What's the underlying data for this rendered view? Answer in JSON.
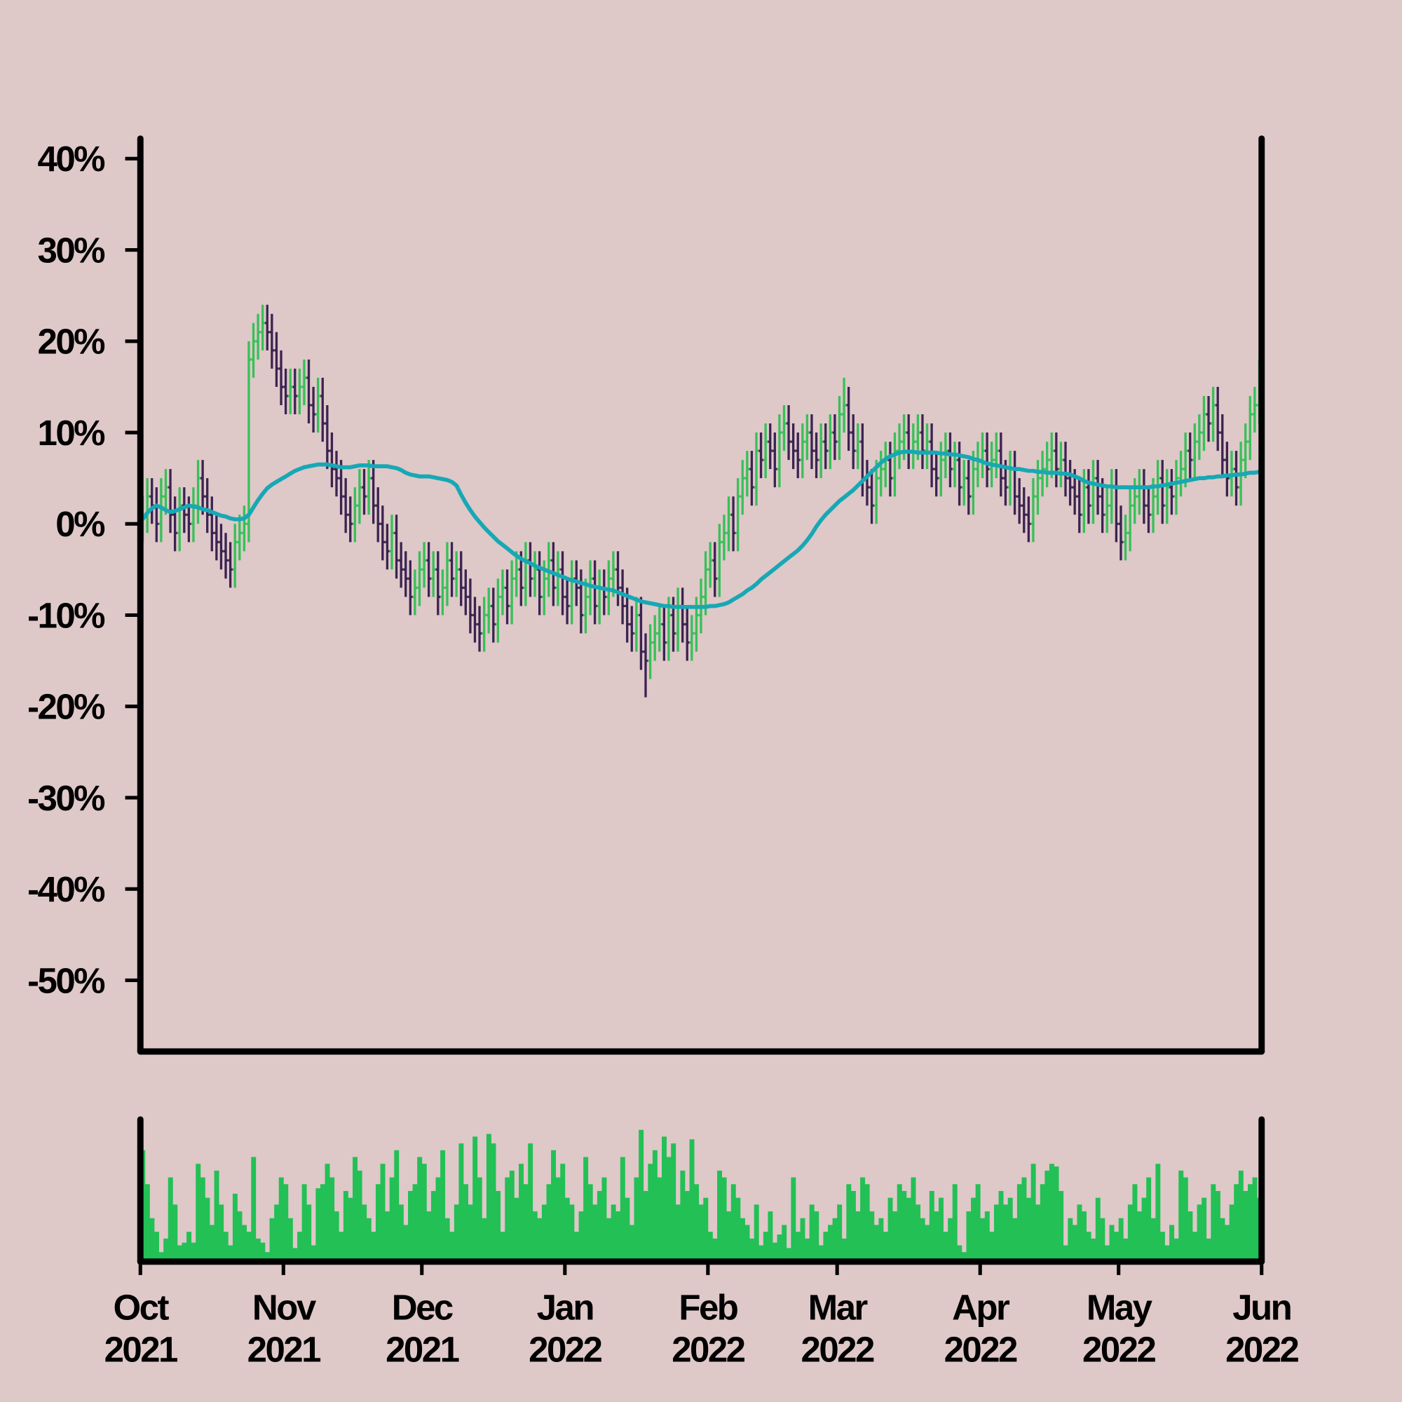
{
  "chart_data": {
    "type": "ohlc",
    "up_color": "#36c158",
    "down_color": "#3b2352",
    "xlim": [
      0,
      243
    ],
    "xticks": [
      {
        "value": 0,
        "label": "Oct 2021"
      },
      {
        "value": 31,
        "label": "Nov 2021"
      },
      {
        "value": 61,
        "label": "Dec 2021"
      },
      {
        "value": 92,
        "label": "Jan 2022"
      },
      {
        "value": 123,
        "label": "Feb 2022"
      },
      {
        "value": 151,
        "label": "Mar 2022"
      },
      {
        "value": 182,
        "label": "Apr 2022"
      },
      {
        "value": 212,
        "label": "May 2022"
      },
      {
        "value": 243,
        "label": "Jun 2022"
      }
    ],
    "ylim": [
      -57.8,
      42.2
    ],
    "yticks": [
      {
        "value": -50,
        "label": "-50%"
      },
      {
        "value": -40,
        "label": "-40%"
      },
      {
        "value": -30,
        "label": "-30%"
      },
      {
        "value": -20,
        "label": "-20%"
      },
      {
        "value": -10,
        "label": "-10%"
      },
      {
        "value": 0,
        "label": "0%"
      },
      {
        "value": 10,
        "label": "10%"
      },
      {
        "value": 20,
        "label": "20%"
      },
      {
        "value": 30,
        "label": "30%"
      },
      {
        "value": 40,
        "label": "40%"
      }
    ],
    "open": [
      0,
      1,
      3,
      2,
      0,
      3,
      4,
      1,
      -1,
      2,
      1,
      0,
      2,
      5,
      3,
      1,
      -1,
      -2,
      -3,
      -4,
      -5,
      -2,
      -1,
      0,
      18,
      20,
      21,
      22,
      21,
      19,
      17,
      15,
      14,
      15,
      14,
      15,
      16,
      13,
      12,
      14,
      11,
      8,
      6,
      5,
      3,
      1,
      0,
      2,
      4,
      3,
      5,
      2,
      0,
      -2,
      -3,
      -1,
      -4,
      -5,
      -6,
      -8,
      -7,
      -5,
      -4,
      -6,
      -5,
      -8,
      -7,
      -4,
      -6,
      -5,
      -7,
      -8,
      -10,
      -11,
      -12,
      -10,
      -9,
      -11,
      -8,
      -7,
      -9,
      -6,
      -5,
      -7,
      -4,
      -6,
      -5,
      -8,
      -6,
      -4,
      -7,
      -5,
      -8,
      -9,
      -6,
      -7,
      -10,
      -8,
      -6,
      -9,
      -7,
      -8,
      -6,
      -5,
      -7,
      -9,
      -11,
      -12,
      -10,
      -14,
      -15,
      -13,
      -12,
      -11,
      -13,
      -10,
      -12,
      -9,
      -11,
      -13,
      -12,
      -10,
      -8,
      -5,
      -4,
      -6,
      -2,
      -1,
      1,
      -1,
      3,
      5,
      6,
      4,
      8,
      7,
      9,
      8,
      6,
      10,
      11,
      9,
      8,
      7,
      9,
      10,
      8,
      7,
      9,
      8,
      10,
      9,
      12,
      13,
      10,
      8,
      9,
      5,
      4,
      2,
      5,
      6,
      7,
      5,
      8,
      9,
      10,
      8,
      9,
      10,
      8,
      9,
      6,
      5,
      7,
      8,
      6,
      7,
      4,
      5,
      3,
      6,
      7,
      8,
      6,
      7,
      8,
      5,
      4,
      6,
      3,
      2,
      1,
      0,
      3,
      5,
      6,
      7,
      8,
      6,
      7,
      5,
      4,
      3,
      1,
      4,
      2,
      5,
      3,
      1,
      2,
      4,
      0,
      -2,
      -1,
      2,
      3,
      4,
      2,
      1,
      3,
      5,
      2,
      4,
      3,
      5,
      6,
      8,
      7,
      9,
      10,
      12,
      11,
      13,
      10,
      7,
      5,
      6,
      4,
      7,
      9,
      12,
      13
    ],
    "high": [
      3,
      5,
      5,
      4,
      5,
      6,
      6,
      3,
      4,
      4,
      3,
      4,
      7,
      7,
      5,
      3,
      1,
      0,
      -1,
      -2,
      0,
      1,
      2,
      20,
      22,
      23,
      24,
      24,
      23,
      21,
      19,
      17,
      17,
      17,
      17,
      18,
      18,
      15,
      16,
      16,
      13,
      10,
      8,
      7,
      5,
      3,
      4,
      6,
      6,
      7,
      7,
      4,
      2,
      0,
      1,
      1,
      -2,
      -3,
      -4,
      -5,
      -3,
      -2,
      -2,
      -3,
      -3,
      -5,
      -2,
      -2,
      -3,
      -3,
      -5,
      -6,
      -8,
      -9,
      -8,
      -7,
      -7,
      -6,
      -5,
      -5,
      -4,
      -3,
      -3,
      -2,
      -2,
      -3,
      -3,
      -4,
      -2,
      -2,
      -3,
      -3,
      -6,
      -4,
      -4,
      -5,
      -6,
      -4,
      -4,
      -5,
      -5,
      -4,
      -3,
      -3,
      -5,
      -7,
      -9,
      -8,
      -8,
      -12,
      -11,
      -10,
      -9,
      -9,
      -8,
      -8,
      -7,
      -7,
      -9,
      -10,
      -8,
      -6,
      -3,
      -2,
      -2,
      0,
      1,
      3,
      3,
      5,
      7,
      8,
      8,
      10,
      10,
      11,
      11,
      10,
      12,
      13,
      13,
      11,
      10,
      11,
      12,
      12,
      10,
      11,
      11,
      12,
      12,
      14,
      16,
      15,
      12,
      11,
      11,
      7,
      6,
      7,
      8,
      9,
      9,
      10,
      11,
      12,
      12,
      11,
      12,
      12,
      11,
      11,
      8,
      9,
      10,
      10,
      9,
      9,
      7,
      7,
      8,
      9,
      10,
      10,
      9,
      10,
      10,
      7,
      8,
      8,
      5,
      4,
      3,
      5,
      7,
      8,
      9,
      10,
      10,
      9,
      9,
      7,
      6,
      5,
      6,
      6,
      7,
      7,
      5,
      4,
      6,
      6,
      2,
      1,
      4,
      5,
      6,
      6,
      4,
      5,
      7,
      7,
      6,
      6,
      7,
      8,
      10,
      10,
      11,
      12,
      14,
      14,
      15,
      15,
      12,
      9,
      8,
      8,
      9,
      11,
      14,
      15,
      18
    ],
    "low": [
      -2,
      -1,
      0,
      -2,
      -2,
      1,
      -1,
      -3,
      -3,
      -1,
      -2,
      -2,
      0,
      1,
      -1,
      -3,
      -4,
      -5,
      -6,
      -7,
      -7,
      -4,
      -3,
      -2,
      16,
      18,
      19,
      19,
      17,
      15,
      13,
      12,
      12,
      12,
      12,
      13,
      11,
      10,
      10,
      9,
      6,
      4,
      3,
      1,
      -1,
      -2,
      -2,
      0,
      1,
      1,
      0,
      -2,
      -4,
      -5,
      -5,
      -6,
      -7,
      -8,
      -10,
      -10,
      -9,
      -7,
      -8,
      -8,
      -10,
      -10,
      -9,
      -8,
      -8,
      -9,
      -10,
      -12,
      -13,
      -14,
      -14,
      -12,
      -13,
      -13,
      -10,
      -11,
      -11,
      -8,
      -9,
      -9,
      -8,
      -8,
      -10,
      -10,
      -8,
      -9,
      -9,
      -10,
      -11,
      -11,
      -9,
      -12,
      -12,
      -10,
      -11,
      -11,
      -10,
      -10,
      -8,
      -9,
      -11,
      -13,
      -14,
      -14,
      -16,
      -19,
      -17,
      -15,
      -14,
      -15,
      -15,
      -14,
      -14,
      -13,
      -15,
      -15,
      -14,
      -12,
      -10,
      -7,
      -8,
      -8,
      -4,
      -3,
      -3,
      -3,
      1,
      3,
      2,
      2,
      5,
      5,
      6,
      4,
      4,
      8,
      7,
      6,
      5,
      5,
      7,
      6,
      5,
      5,
      6,
      6,
      7,
      7,
      10,
      8,
      6,
      6,
      3,
      2,
      0,
      0,
      3,
      4,
      3,
      3,
      6,
      7,
      6,
      6,
      7,
      6,
      6,
      4,
      3,
      3,
      5,
      4,
      4,
      2,
      2,
      1,
      1,
      4,
      5,
      4,
      4,
      5,
      3,
      2,
      2,
      1,
      0,
      -1,
      -2,
      -2,
      1,
      3,
      4,
      5,
      4,
      4,
      3,
      2,
      1,
      -1,
      -1,
      0,
      0,
      1,
      -1,
      -1,
      0,
      -2,
      -4,
      -4,
      -3,
      0,
      1,
      0,
      -1,
      -1,
      1,
      0,
      0,
      1,
      1,
      3,
      4,
      5,
      5,
      7,
      8,
      9,
      9,
      8,
      5,
      3,
      3,
      2,
      2,
      5,
      7,
      10,
      11
    ],
    "close": [
      1,
      3,
      2,
      0,
      3,
      4,
      1,
      -1,
      2,
      1,
      0,
      2,
      5,
      3,
      1,
      -1,
      -2,
      -3,
      -4,
      -5,
      -2,
      -1,
      0,
      18,
      20,
      21,
      22,
      21,
      19,
      17,
      15,
      14,
      15,
      14,
      15,
      16,
      13,
      12,
      14,
      11,
      8,
      6,
      5,
      3,
      1,
      0,
      2,
      4,
      3,
      5,
      2,
      0,
      -2,
      -3,
      -1,
      -4,
      -5,
      -6,
      -8,
      -7,
      -5,
      -4,
      -6,
      -5,
      -8,
      -7,
      -4,
      -6,
      -5,
      -7,
      -8,
      -10,
      -11,
      -12,
      -10,
      -9,
      -11,
      -8,
      -7,
      -9,
      -6,
      -5,
      -7,
      -4,
      -6,
      -5,
      -8,
      -6,
      -4,
      -7,
      -5,
      -8,
      -9,
      -6,
      -7,
      -10,
      -8,
      -6,
      -9,
      -7,
      -8,
      -6,
      -5,
      -7,
      -9,
      -11,
      -12,
      -10,
      -14,
      -15,
      -13,
      -12,
      -11,
      -13,
      -10,
      -12,
      -9,
      -11,
      -13,
      -12,
      -10,
      -8,
      -5,
      -4,
      -6,
      -2,
      -1,
      1,
      -1,
      3,
      5,
      6,
      4,
      8,
      7,
      9,
      8,
      6,
      10,
      11,
      9,
      8,
      7,
      9,
      10,
      8,
      7,
      9,
      8,
      10,
      9,
      12,
      13,
      10,
      8,
      9,
      5,
      4,
      2,
      5,
      6,
      7,
      5,
      8,
      9,
      10,
      8,
      9,
      10,
      8,
      9,
      6,
      5,
      7,
      8,
      6,
      7,
      4,
      5,
      3,
      6,
      7,
      8,
      6,
      7,
      8,
      5,
      4,
      6,
      3,
      2,
      1,
      0,
      3,
      5,
      6,
      7,
      8,
      6,
      7,
      5,
      4,
      3,
      1,
      4,
      2,
      5,
      3,
      1,
      2,
      4,
      0,
      -2,
      -1,
      2,
      3,
      4,
      2,
      1,
      3,
      5,
      2,
      4,
      3,
      5,
      6,
      8,
      7,
      9,
      10,
      12,
      11,
      13,
      10,
      7,
      5,
      6,
      4,
      7,
      9,
      12,
      13,
      16
    ],
    "ma": {
      "color": "#17a8b5",
      "values": [
        0.5,
        1.2,
        1.7,
        2.0,
        1.8,
        1.5,
        1.3,
        1.4,
        1.6,
        1.8,
        2.0,
        1.9,
        1.8,
        1.6,
        1.5,
        1.3,
        1.1,
        0.9,
        0.8,
        0.6,
        0.5,
        0.5,
        0.6,
        1.0,
        1.8,
        2.6,
        3.3,
        3.9,
        4.3,
        4.6,
        4.9,
        5.2,
        5.5,
        5.8,
        6.0,
        6.2,
        6.3,
        6.4,
        6.5,
        6.5,
        6.5,
        6.4,
        6.3,
        6.2,
        6.2,
        6.2,
        6.3,
        6.4,
        6.4,
        6.4,
        6.3,
        6.3,
        6.3,
        6.3,
        6.2,
        6.1,
        5.9,
        5.6,
        5.4,
        5.3,
        5.2,
        5.2,
        5.2,
        5.1,
        5.0,
        4.9,
        4.8,
        4.6,
        4.2,
        3.2,
        2.3,
        1.5,
        0.8,
        0.2,
        -0.4,
        -0.9,
        -1.4,
        -1.9,
        -2.3,
        -2.7,
        -3.1,
        -3.5,
        -3.8,
        -4.1,
        -4.3,
        -4.6,
        -4.8,
        -5.0,
        -5.2,
        -5.4,
        -5.6,
        -5.8,
        -6.0,
        -6.2,
        -6.3,
        -6.5,
        -6.6,
        -6.8,
        -6.9,
        -7.0,
        -7.1,
        -7.2,
        -7.3,
        -7.5,
        -7.7,
        -7.9,
        -8.1,
        -8.3,
        -8.5,
        -8.6,
        -8.7,
        -8.8,
        -8.9,
        -9.0,
        -9.0,
        -9.1,
        -9.1,
        -9.1,
        -9.1,
        -9.1,
        -9.1,
        -9.1,
        -9.1,
        -9.0,
        -9.0,
        -8.9,
        -8.8,
        -8.6,
        -8.3,
        -8.0,
        -7.7,
        -7.3,
        -7.0,
        -6.6,
        -6.1,
        -5.7,
        -5.3,
        -4.9,
        -4.5,
        -4.1,
        -3.7,
        -3.3,
        -2.9,
        -2.4,
        -1.8,
        -1.1,
        -0.3,
        0.4,
        1.0,
        1.5,
        2.0,
        2.5,
        2.9,
        3.3,
        3.7,
        4.2,
        4.7,
        5.2,
        5.7,
        6.2,
        6.7,
        7.1,
        7.4,
        7.6,
        7.8,
        7.9,
        7.9,
        7.9,
        7.8,
        7.8,
        7.8,
        7.8,
        7.8,
        7.7,
        7.7,
        7.6,
        7.6,
        7.5,
        7.4,
        7.3,
        7.1,
        7.0,
        6.8,
        6.6,
        6.5,
        6.4,
        6.3,
        6.2,
        6.1,
        6.0,
        6.0,
        5.9,
        5.8,
        5.8,
        5.7,
        5.7,
        5.6,
        5.6,
        5.6,
        5.5,
        5.5,
        5.4,
        5.2,
        5.0,
        4.7,
        4.5,
        4.4,
        4.3,
        4.2,
        4.1,
        4.1,
        4.0,
        4.0,
        4.0,
        4.0,
        4.0,
        4.0,
        4.0,
        4.0,
        4.1,
        4.1,
        4.2,
        4.3,
        4.4,
        4.5,
        4.6,
        4.7,
        4.8,
        4.9,
        5.0,
        5.0,
        5.1,
        5.1,
        5.2,
        5.2,
        5.3,
        5.3,
        5.4,
        5.4,
        5.5,
        5.6,
        5.6,
        5.7
      ]
    },
    "volume": {
      "color": "#22c055",
      "ylim": [
        0,
        100
      ],
      "values": [
        80,
        55,
        30,
        20,
        5,
        15,
        60,
        40,
        10,
        12,
        20,
        12,
        70,
        60,
        45,
        25,
        65,
        40,
        20,
        10,
        48,
        35,
        25,
        20,
        75,
        15,
        12,
        5,
        30,
        40,
        60,
        55,
        30,
        8,
        20,
        55,
        40,
        10,
        52,
        55,
        70,
        60,
        35,
        20,
        50,
        45,
        75,
        65,
        40,
        30,
        20,
        55,
        70,
        35,
        60,
        80,
        40,
        25,
        50,
        55,
        75,
        70,
        35,
        50,
        60,
        80,
        30,
        20,
        40,
        85,
        55,
        40,
        90,
        60,
        30,
        92,
        85,
        50,
        20,
        60,
        65,
        45,
        70,
        55,
        85,
        35,
        30,
        40,
        55,
        80,
        60,
        70,
        45,
        40,
        20,
        35,
        75,
        55,
        40,
        50,
        60,
        30,
        40,
        35,
        75,
        45,
        25,
        60,
        95,
        50,
        70,
        80,
        60,
        90,
        75,
        85,
        40,
        65,
        50,
        88,
        55,
        40,
        45,
        20,
        15,
        65,
        60,
        35,
        55,
        45,
        30,
        25,
        15,
        40,
        10,
        20,
        35,
        12,
        18,
        25,
        8,
        60,
        20,
        30,
        15,
        40,
        35,
        10,
        20,
        25,
        30,
        40,
        15,
        55,
        50,
        35,
        60,
        55,
        35,
        25,
        30,
        20,
        45,
        35,
        55,
        50,
        45,
        60,
        40,
        30,
        25,
        50,
        35,
        45,
        20,
        30,
        55,
        10,
        5,
        35,
        45,
        55,
        30,
        35,
        20,
        40,
        50,
        40,
        45,
        30,
        55,
        60,
        45,
        70,
        40,
        55,
        65,
        70,
        68,
        50,
        10,
        30,
        25,
        40,
        35,
        20,
        15,
        45,
        30,
        10,
        25,
        20,
        30,
        15,
        40,
        55,
        35,
        45,
        60,
        30,
        70,
        20,
        10,
        25,
        15,
        65,
        60,
        35,
        20,
        40,
        45,
        15,
        55,
        50,
        30,
        25,
        40,
        55,
        65,
        50,
        55,
        60,
        45
      ]
    }
  }
}
